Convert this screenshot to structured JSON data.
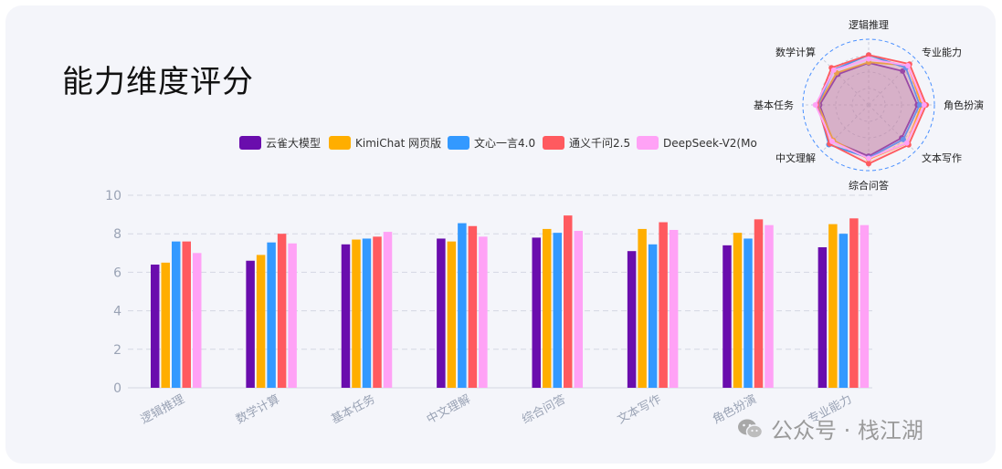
{
  "page": {
    "title": "能力维度评分",
    "watermark": "公众号 · 栈江湖"
  },
  "chart_data": [
    {
      "type": "bar",
      "categories": [
        "逻辑推理",
        "数学计算",
        "基本任务",
        "中文理解",
        "综合问答",
        "文本写作",
        "角色扮演",
        "专业能力"
      ],
      "ylim": [
        0,
        10
      ],
      "yticks": [
        "0",
        "2",
        "4",
        "6",
        "8",
        "10"
      ],
      "legend_position": "top",
      "series": [
        {
          "name": "云雀大模型",
          "color": "#6a0dad",
          "values": [
            6.4,
            6.6,
            7.45,
            7.75,
            7.8,
            7.1,
            7.4,
            7.3
          ]
        },
        {
          "name": "KimiChat 网页版",
          "color": "#ffae00",
          "values": [
            6.5,
            6.9,
            7.7,
            7.6,
            8.25,
            8.25,
            8.05,
            8.5
          ]
        },
        {
          "name": "文心一言4.0",
          "color": "#3399ff",
          "values": [
            7.6,
            7.55,
            7.75,
            8.55,
            8.05,
            7.45,
            7.75,
            8.0
          ]
        },
        {
          "name": "通义千问2.5",
          "color": "#ff5a5f",
          "values": [
            7.6,
            8.0,
            7.85,
            8.4,
            8.95,
            8.6,
            8.75,
            8.8
          ]
        },
        {
          "name": "DeepSeek-V2(Mo",
          "color": "#ffa2f6",
          "values": [
            7.0,
            7.5,
            8.1,
            7.85,
            8.15,
            8.2,
            8.45,
            8.45
          ]
        }
      ]
    },
    {
      "type": "radar",
      "axes": [
        "逻辑推理",
        "专业能力",
        "角色扮演",
        "文本写作",
        "综合问答",
        "中文理解",
        "基本任务",
        "数学计算"
      ],
      "rmax": 10,
      "series": [
        {
          "name": "云雀大模型",
          "color": "#6a0dad",
          "values": [
            6.4,
            7.3,
            7.4,
            7.1,
            7.8,
            7.75,
            7.45,
            6.6
          ]
        },
        {
          "name": "KimiChat 网页版",
          "color": "#ffae00",
          "values": [
            6.5,
            8.5,
            8.05,
            8.25,
            8.25,
            7.6,
            7.7,
            6.9
          ]
        },
        {
          "name": "文心一言4.0",
          "color": "#3399ff",
          "values": [
            7.6,
            8.0,
            7.75,
            7.45,
            8.05,
            8.55,
            7.75,
            7.55
          ]
        },
        {
          "name": "通义千问2.5",
          "color": "#ff5a5f",
          "values": [
            7.6,
            8.8,
            8.75,
            8.6,
            8.95,
            8.4,
            7.85,
            8.0
          ]
        },
        {
          "name": "DeepSeek-V2(Mo",
          "color": "#ffa2f6",
          "values": [
            7.0,
            8.45,
            8.45,
            8.2,
            8.15,
            7.85,
            8.1,
            7.5
          ]
        }
      ]
    }
  ]
}
